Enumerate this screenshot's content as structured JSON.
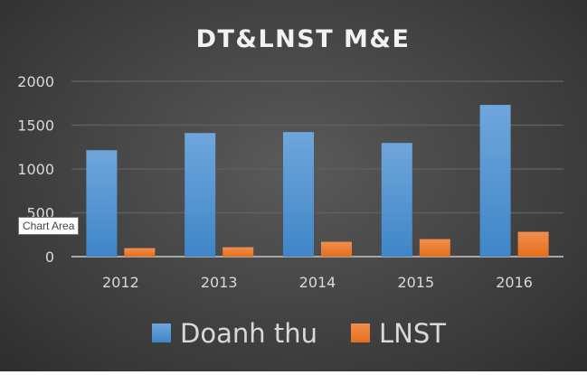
{
  "chart_data": {
    "type": "bar",
    "title": "DT&LNST M&E",
    "categories": [
      "2012",
      "2013",
      "2014",
      "2015",
      "2016"
    ],
    "series": [
      {
        "name": "Doanh thu",
        "color": "#5b9bd5",
        "values": [
          1214,
          1410,
          1421,
          1297,
          1731
        ]
      },
      {
        "name": "LNST",
        "color": "#ed7d31",
        "values": [
          97,
          107,
          169,
          200,
          283
        ]
      }
    ],
    "xlabel": "",
    "ylabel": "",
    "ylim": [
      0,
      2000
    ],
    "yticks": [
      0,
      500,
      1000,
      1500,
      2000
    ],
    "grid": true,
    "legend_position": "bottom"
  },
  "tooltip": "Chart Area"
}
